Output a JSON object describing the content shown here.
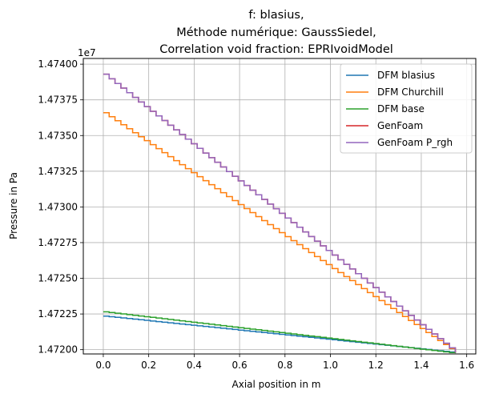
{
  "chart_data": {
    "type": "line",
    "title_lines": [
      "f: blasius,",
      "Méthode numérique: GaussSiedel,",
      "Correlation void fraction: EPRIvoidModel"
    ],
    "xlabel": "Axial position in m",
    "ylabel": "Pressure in Pa",
    "y_offset_label": "1e7",
    "xlim": [
      -0.088,
      1.64
    ],
    "ylim": [
      14719700,
      14740400
    ],
    "x_ticks": [
      0.0,
      0.2,
      0.4,
      0.6,
      0.8,
      1.0,
      1.2,
      1.4,
      1.6
    ],
    "x_tick_labels": [
      "0.0",
      "0.2",
      "0.4",
      "0.6",
      "0.8",
      "1.0",
      "1.2",
      "1.4",
      "1.6"
    ],
    "y_ticks": [
      14720000,
      14722500,
      14725000,
      14727500,
      14730000,
      14732500,
      14735000,
      14737500,
      14740000
    ],
    "y_tick_labels": [
      "1.47200",
      "1.47225",
      "1.47250",
      "1.47275",
      "1.47300",
      "1.47325",
      "1.47350",
      "1.47375",
      "1.47400"
    ],
    "grid": true,
    "legend_position": "top-right",
    "x_range": [
      0.0,
      1.55
    ],
    "steps": 60,
    "series": [
      {
        "name": "DFM blasius",
        "color": "#1f77b4",
        "y_start": 14722350,
        "y_end": 14719800,
        "style": "step"
      },
      {
        "name": "DFM Churchill",
        "color": "#ff7f0e",
        "y_start": 14736600,
        "y_end": 14719800,
        "style": "step"
      },
      {
        "name": "DFM base",
        "color": "#2ca02c",
        "y_start": 14722650,
        "y_end": 14719750,
        "style": "step"
      },
      {
        "name": "GenFoam",
        "color": "#d62728",
        "y_start": 14739300,
        "y_end": 14719800,
        "style": "step"
      },
      {
        "name": "GenFoam P_rgh",
        "color": "#9467bd",
        "y_start": 14739300,
        "y_end": 14719800,
        "style": "step"
      }
    ]
  }
}
